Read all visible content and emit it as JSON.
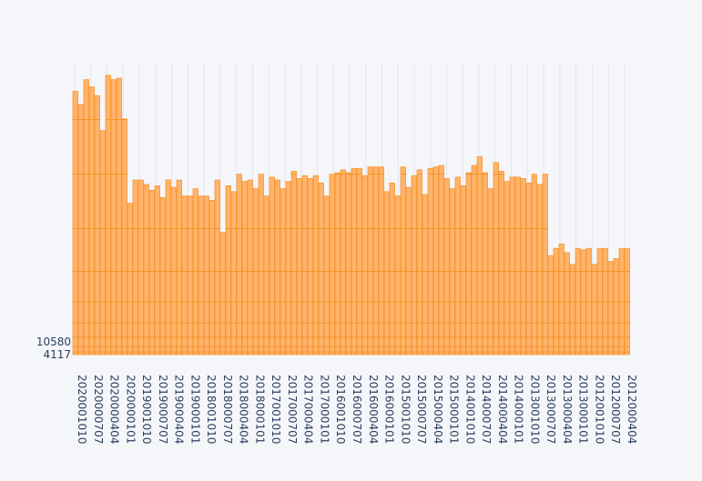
{
  "chart_data": {
    "type": "bar",
    "stacked": true,
    "orientation": "vertical",
    "title": "",
    "xlabel": "",
    "ylabel": "",
    "bar_color": "#ffb36b",
    "bar_edge_color": "#f58f22",
    "background_color": "#f5f6f9",
    "grid": true,
    "x_tick_angle": 90,
    "y_ticks": [
      4117,
      10580
    ],
    "x_tick_labels": [
      "2020001010",
      "2020000707",
      "2020000404",
      "2020000101",
      "2019001010",
      "2019000707",
      "2019000404",
      "2019000101",
      "2018001010",
      "2018000707",
      "2018000404",
      "2018000101",
      "2017001010",
      "2017000707",
      "2017000404",
      "2017000101",
      "2016001010",
      "2016000707",
      "2016000404",
      "2016000101",
      "2015001010",
      "2015000707",
      "2015000404",
      "2015000101",
      "2014001010",
      "2014000707",
      "2014000404",
      "2014000101",
      "2013001010",
      "2013000707",
      "2013000404",
      "2013000101",
      "2012001010",
      "2012000707",
      "2012000404"
    ],
    "values": [
      0.905,
      0.86,
      0.945,
      0.92,
      0.89,
      0.77,
      0.96,
      0.945,
      0.95,
      0.81,
      0.52,
      0.6,
      0.6,
      0.585,
      0.565,
      0.58,
      0.54,
      0.6,
      0.575,
      0.6,
      0.545,
      0.545,
      0.57,
      0.545,
      0.545,
      0.53,
      0.6,
      0.42,
      0.58,
      0.56,
      0.62,
      0.595,
      0.6,
      0.57,
      0.62,
      0.545,
      0.61,
      0.6,
      0.57,
      0.595,
      0.63,
      0.605,
      0.615,
      0.605,
      0.615,
      0.59,
      0.545,
      0.62,
      0.625,
      0.635,
      0.625,
      0.64,
      0.64,
      0.615,
      0.645,
      0.645,
      0.645,
      0.56,
      0.59,
      0.545,
      0.645,
      0.575,
      0.615,
      0.635,
      0.55,
      0.64,
      0.645,
      0.65,
      0.605,
      0.57,
      0.61,
      0.58,
      0.625,
      0.65,
      0.68,
      0.625,
      0.57,
      0.66,
      0.63,
      0.595,
      0.61,
      0.61,
      0.605,
      0.59,
      0.62,
      0.585,
      0.62,
      0.34,
      0.365,
      0.38,
      0.35,
      0.31,
      0.365,
      0.36,
      0.365,
      0.31,
      0.365,
      0.365,
      0.32,
      0.33,
      0.365,
      0.365
    ],
    "value_scale": "fraction of plot height"
  }
}
